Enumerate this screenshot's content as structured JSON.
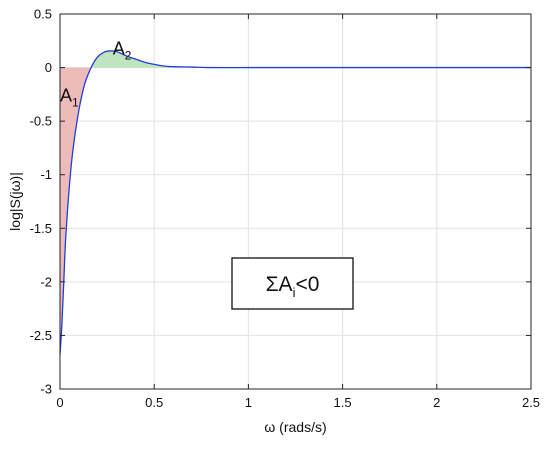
{
  "chart_data": {
    "type": "area",
    "title": "",
    "xlabel": "ω (rads/s)",
    "ylabel": "log|S(jω)|",
    "xlim": [
      0,
      2.5
    ],
    "ylim": [
      -3,
      0.5
    ],
    "xticks": [
      0,
      0.5,
      1,
      1.5,
      2,
      2.5
    ],
    "xtick_labels": [
      "0",
      "0.5",
      "1",
      "1.5",
      "2",
      "2.5"
    ],
    "yticks": [
      0.5,
      0,
      -0.5,
      -1,
      -1.5,
      -2,
      -2.5,
      -3
    ],
    "ytick_labels": [
      "0.5",
      "0",
      "-0.5",
      "-1",
      "-1.5",
      "-2",
      "-2.5",
      "-3"
    ],
    "grid": true,
    "series": [
      {
        "color": "#1f3fd6",
        "x": [
          0.0,
          0.01,
          0.02,
          0.03,
          0.05,
          0.07,
          0.1,
          0.13,
          0.16,
          0.18,
          0.2,
          0.23,
          0.26,
          0.3,
          0.35,
          0.4,
          0.45,
          0.5,
          0.55,
          0.6,
          0.7,
          0.8,
          1.0,
          1.2,
          1.5,
          1.8,
          2.0,
          2.2,
          2.5
        ],
        "y": [
          -2.68,
          -2.4,
          -2.0,
          -1.6,
          -1.1,
          -0.75,
          -0.4,
          -0.16,
          -0.02,
          0.05,
          0.1,
          0.14,
          0.155,
          0.15,
          0.11,
          0.08,
          0.05,
          0.03,
          0.015,
          0.008,
          0.005,
          0.0,
          0.0,
          0.0,
          0.0,
          0.0,
          0.0,
          0.0,
          0.0
        ]
      }
    ],
    "regions": [
      {
        "label": "A",
        "subscript": "1",
        "color": "#eebbbb",
        "sign": "negative"
      },
      {
        "label": "A",
        "subscript": "2",
        "color": "#bfe5bf",
        "sign": "positive"
      }
    ],
    "annotation": {
      "prefix": "ΣA",
      "subscript": "i",
      "suffix": "<0"
    }
  }
}
